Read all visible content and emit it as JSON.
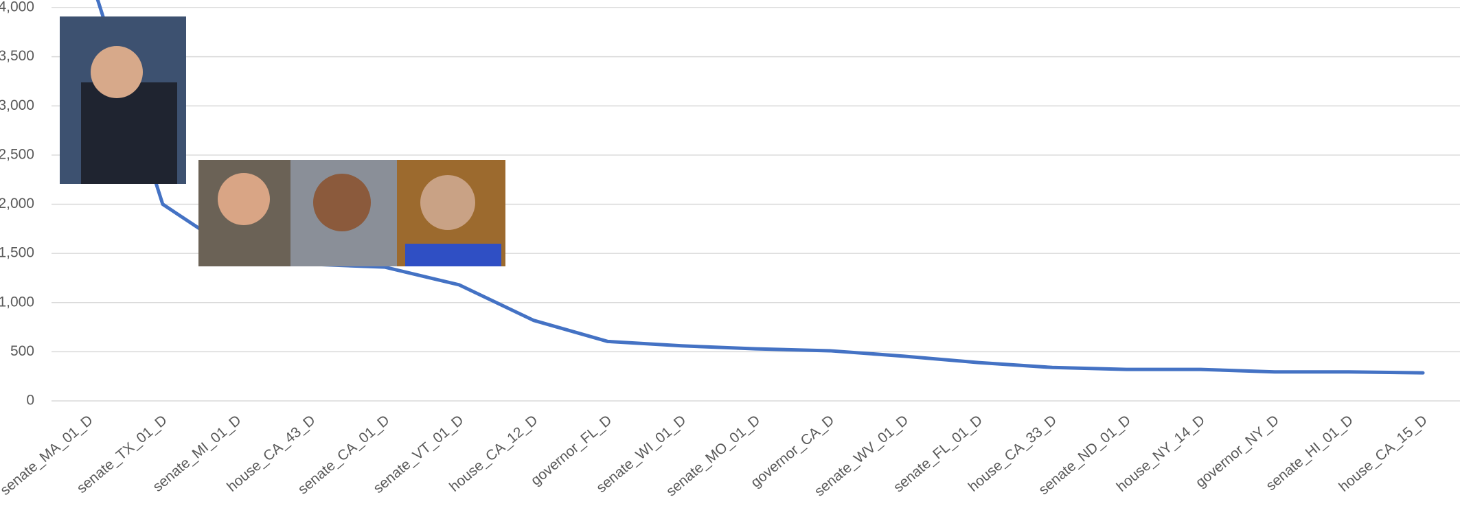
{
  "chart_data": {
    "type": "line",
    "categories": [
      "senate_MA_01_D",
      "senate_TX_01_D",
      "senate_MI_01_D",
      "house_CA_43_D",
      "senate_CA_01_D",
      "senate_VT_01_D",
      "house_CA_12_D",
      "governor_FL_D",
      "senate_WI_01_D",
      "senate_MO_01_D",
      "governor_CA_D",
      "senate_WV_01_D",
      "senate_FL_01_D",
      "house_CA_33_D",
      "senate_ND_01_D",
      "house_NY_14_D",
      "governor_NY_D",
      "senate_HI_01_D",
      "house_CA_15_D"
    ],
    "values": [
      4370,
      2000,
      1500,
      1390,
      1360,
      1180,
      820,
      605,
      560,
      530,
      510,
      455,
      390,
      340,
      320,
      320,
      295,
      295,
      285
    ],
    "color": "#4472c4",
    "ylim": [
      0,
      4000
    ],
    "yticks": [
      0,
      500,
      {
        "value": 1000,
        "label": "1,000"
      },
      {
        "value": 1500,
        "label": "1,500"
      },
      {
        "value": 2000,
        "label": "2,000"
      },
      {
        "value": 2500,
        "label": "2,500"
      },
      {
        "value": 3000,
        "label": "3,000"
      },
      {
        "value": 3500,
        "label": "3,500"
      },
      {
        "value": 4000,
        "label": "4,000"
      }
    ],
    "grid": true
  }
}
